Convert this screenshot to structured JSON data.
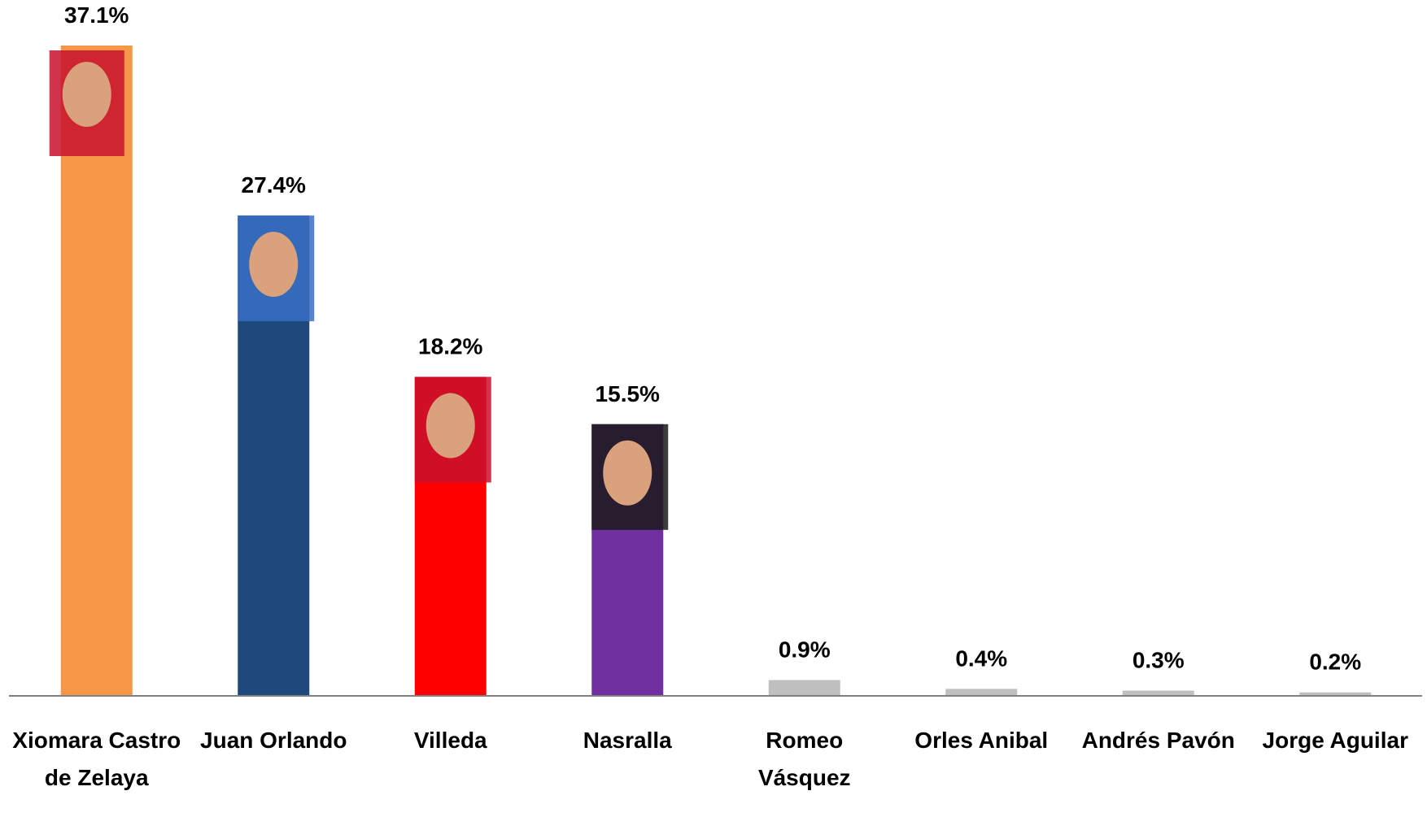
{
  "chart_data": {
    "type": "bar",
    "categories": [
      "Xiomara Castro de Zelaya",
      "Juan Orlando",
      "Villeda",
      "Nasralla",
      "Romeo Vásquez",
      "Orles Anibal",
      "Andrés Pavón",
      "Jorge Aguilar"
    ],
    "values": [
      37.1,
      27.4,
      18.2,
      15.5,
      0.9,
      0.4,
      0.3,
      0.2
    ],
    "value_labels": [
      "37.1%",
      "27.4%",
      "18.2%",
      "15.5%",
      "0.9%",
      "0.4%",
      "0.3%",
      "0.2%"
    ],
    "colors": [
      "#f79646",
      "#1f497d",
      "#ff0000",
      "#7030a0",
      "#bfbfbf",
      "#bfbfbf",
      "#bfbfbf",
      "#bfbfbf"
    ]
  }
}
